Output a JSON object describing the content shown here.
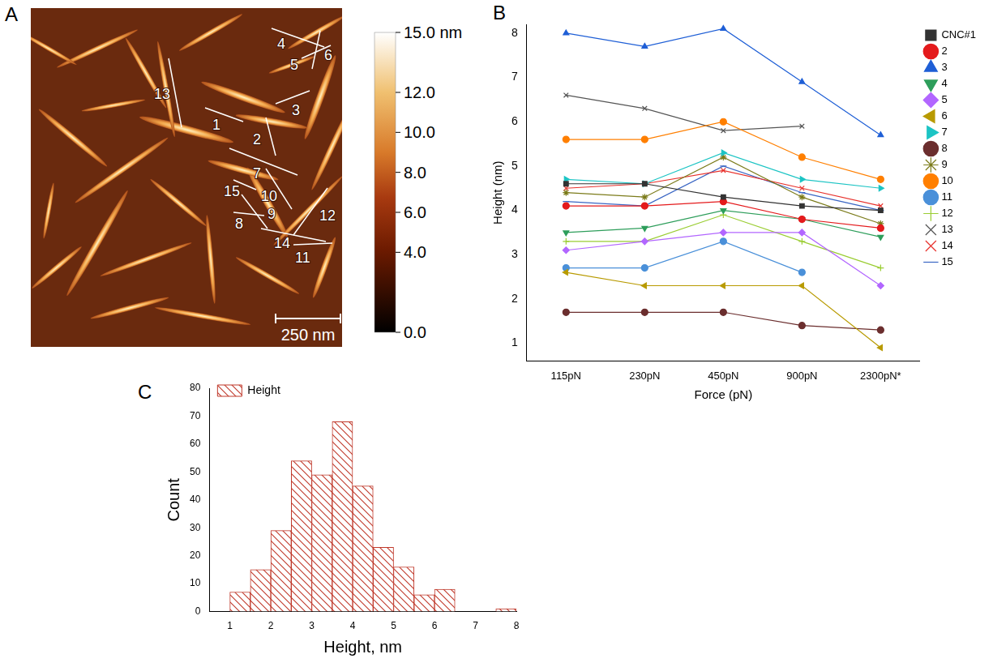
{
  "image": {
    "panel": "A",
    "type": "afm",
    "line_labels": [
      "1",
      "2",
      "3",
      "4",
      "5",
      "6",
      "7",
      "8",
      "9",
      "10",
      "11",
      "12",
      "13",
      "14",
      "15"
    ],
    "scale_bar": "250 nm",
    "colorbar": {
      "range": [
        0,
        15
      ],
      "ticks": [
        {
          "value": 15,
          "label": "15.0 nm"
        },
        {
          "value": 12,
          "label": "12.0"
        },
        {
          "value": 10,
          "label": "10.0"
        },
        {
          "value": 8,
          "label": "8.0"
        },
        {
          "value": 6,
          "label": "6.0"
        },
        {
          "value": 4,
          "label": "4.0"
        },
        {
          "value": 0,
          "label": "0.0"
        }
      ]
    }
  },
  "chart_data": [
    {
      "panel": "B",
      "type": "line",
      "categories": [
        "115pN",
        "230pN",
        "450pN",
        "900pN",
        "2300pN*"
      ],
      "x_label": "Force (pN)",
      "y_label": "Height (nm)",
      "ylim": [
        0.6,
        8.2
      ],
      "yticks": [
        1,
        2,
        3,
        4,
        5,
        6,
        7,
        8
      ],
      "grid": false,
      "legend": "right",
      "series": [
        {
          "name": "CNC#1",
          "color": "#333333",
          "marker": "square",
          "values": [
            4.6,
            4.6,
            4.3,
            4.1,
            4.0
          ]
        },
        {
          "name": "2",
          "color": "#e41a1c",
          "marker": "circle",
          "values": [
            4.1,
            4.1,
            4.2,
            3.8,
            3.6
          ]
        },
        {
          "name": "3",
          "color": "#1f5fd6",
          "marker": "triangle_up",
          "values": [
            8.0,
            7.7,
            8.1,
            6.9,
            5.7
          ]
        },
        {
          "name": "4",
          "color": "#2e9e5b",
          "marker": "triangle_down",
          "values": [
            3.5,
            3.6,
            4.0,
            3.8,
            3.4
          ]
        },
        {
          "name": "5",
          "color": "#b266ff",
          "marker": "diamond",
          "values": [
            3.1,
            3.3,
            3.5,
            3.5,
            2.3
          ]
        },
        {
          "name": "6",
          "color": "#b89a00",
          "marker": "triangle_left",
          "values": [
            2.6,
            2.3,
            2.3,
            2.3,
            0.9
          ]
        },
        {
          "name": "7",
          "color": "#1cc4c4",
          "marker": "triangle_right",
          "values": [
            4.7,
            4.6,
            5.3,
            4.7,
            4.5
          ]
        },
        {
          "name": "8",
          "color": "#6b2e2e",
          "marker": "circle",
          "values": [
            1.7,
            1.7,
            1.7,
            1.4,
            1.3
          ]
        },
        {
          "name": "9",
          "color": "#7b7b1a",
          "marker": "star",
          "values": [
            4.4,
            4.3,
            5.2,
            4.3,
            3.7
          ]
        },
        {
          "name": "10",
          "color": "#ff7f00",
          "marker": "circle",
          "values": [
            5.6,
            5.6,
            6.0,
            5.2,
            4.7
          ]
        },
        {
          "name": "11",
          "color": "#4a90d9",
          "marker": "circle",
          "values": [
            2.7,
            2.7,
            3.3,
            2.6,
            null
          ]
        },
        {
          "name": "12",
          "color": "#9acd32",
          "marker": "plus",
          "values": [
            3.3,
            3.3,
            3.9,
            3.3,
            2.7
          ]
        },
        {
          "name": "13",
          "color": "#555555",
          "marker": "x",
          "values": [
            6.6,
            6.3,
            5.8,
            5.9,
            null
          ]
        },
        {
          "name": "14",
          "color": "#e8322d",
          "marker": "x",
          "values": [
            4.5,
            4.6,
            4.9,
            4.5,
            4.1
          ]
        },
        {
          "name": "15",
          "color": "#3a66c4",
          "marker": "line",
          "values": [
            4.2,
            4.1,
            5.0,
            4.4,
            4.0
          ]
        }
      ]
    },
    {
      "panel": "C",
      "type": "histogram",
      "bins": [
        1,
        1.5,
        2,
        2.5,
        3,
        3.5,
        4,
        4.5,
        5,
        5.5,
        6,
        6.5,
        7,
        7.5,
        8
      ],
      "series": [
        {
          "name": "Height",
          "color": "#c0392b",
          "values": [
            7,
            15,
            29,
            54,
            49,
            68,
            45,
            23,
            16,
            6,
            8,
            0,
            0,
            1
          ]
        }
      ],
      "x_label": "Height, nm",
      "y_label": "Count",
      "xlim": [
        0.5,
        8
      ],
      "xticks": [
        1,
        2,
        3,
        4,
        5,
        6,
        7,
        8
      ],
      "ylim": [
        0,
        80
      ],
      "yticks": [
        0,
        10,
        20,
        30,
        40,
        50,
        60,
        70,
        80
      ],
      "grid": false,
      "legend": "upper left"
    }
  ]
}
